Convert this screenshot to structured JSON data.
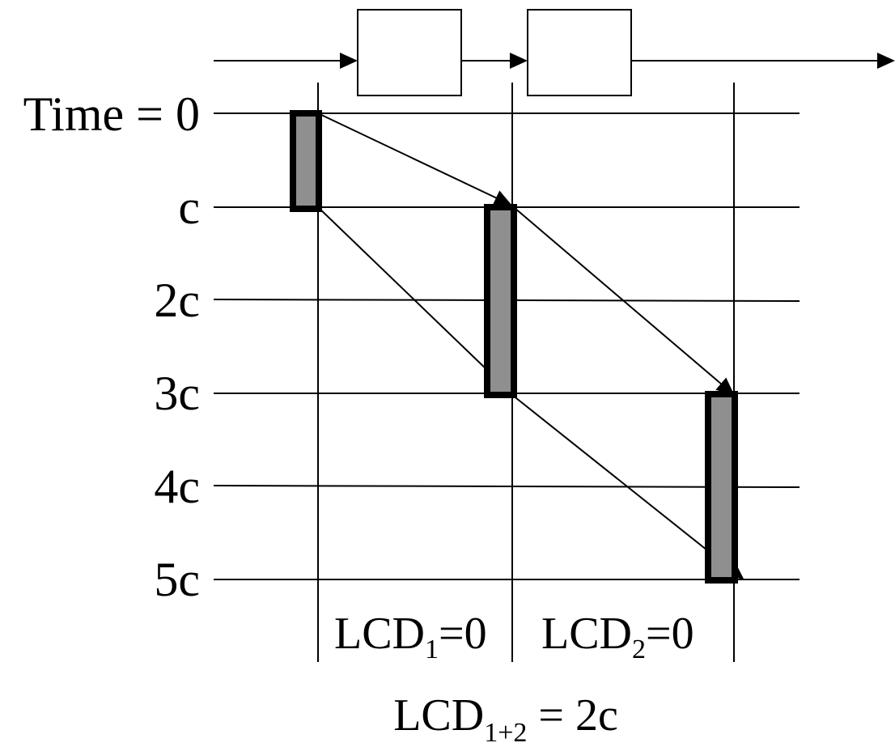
{
  "time_rows": [
    {
      "label": "Time = 0"
    },
    {
      "label": "c"
    },
    {
      "label": "2c"
    },
    {
      "label": "3c"
    },
    {
      "label": "4c"
    },
    {
      "label": "5c"
    }
  ],
  "pipeline_boxes": [
    {
      "label": ""
    },
    {
      "label": ""
    }
  ],
  "segments": [
    {
      "base": "LCD",
      "sub": "1",
      "rest": "=0"
    },
    {
      "base": "LCD",
      "sub": "2",
      "rest": "=0"
    }
  ],
  "total": {
    "base": "LCD",
    "sub": "1+2",
    "rest": " = 2c"
  },
  "stages": [
    {
      "start": "0",
      "end": "c"
    },
    {
      "start": "c",
      "end": "3c"
    },
    {
      "start": "3c",
      "end": "5c"
    }
  ],
  "colors": {
    "line": "#000000",
    "bar_fill": "#8f8f8f",
    "background": "#ffffff"
  }
}
